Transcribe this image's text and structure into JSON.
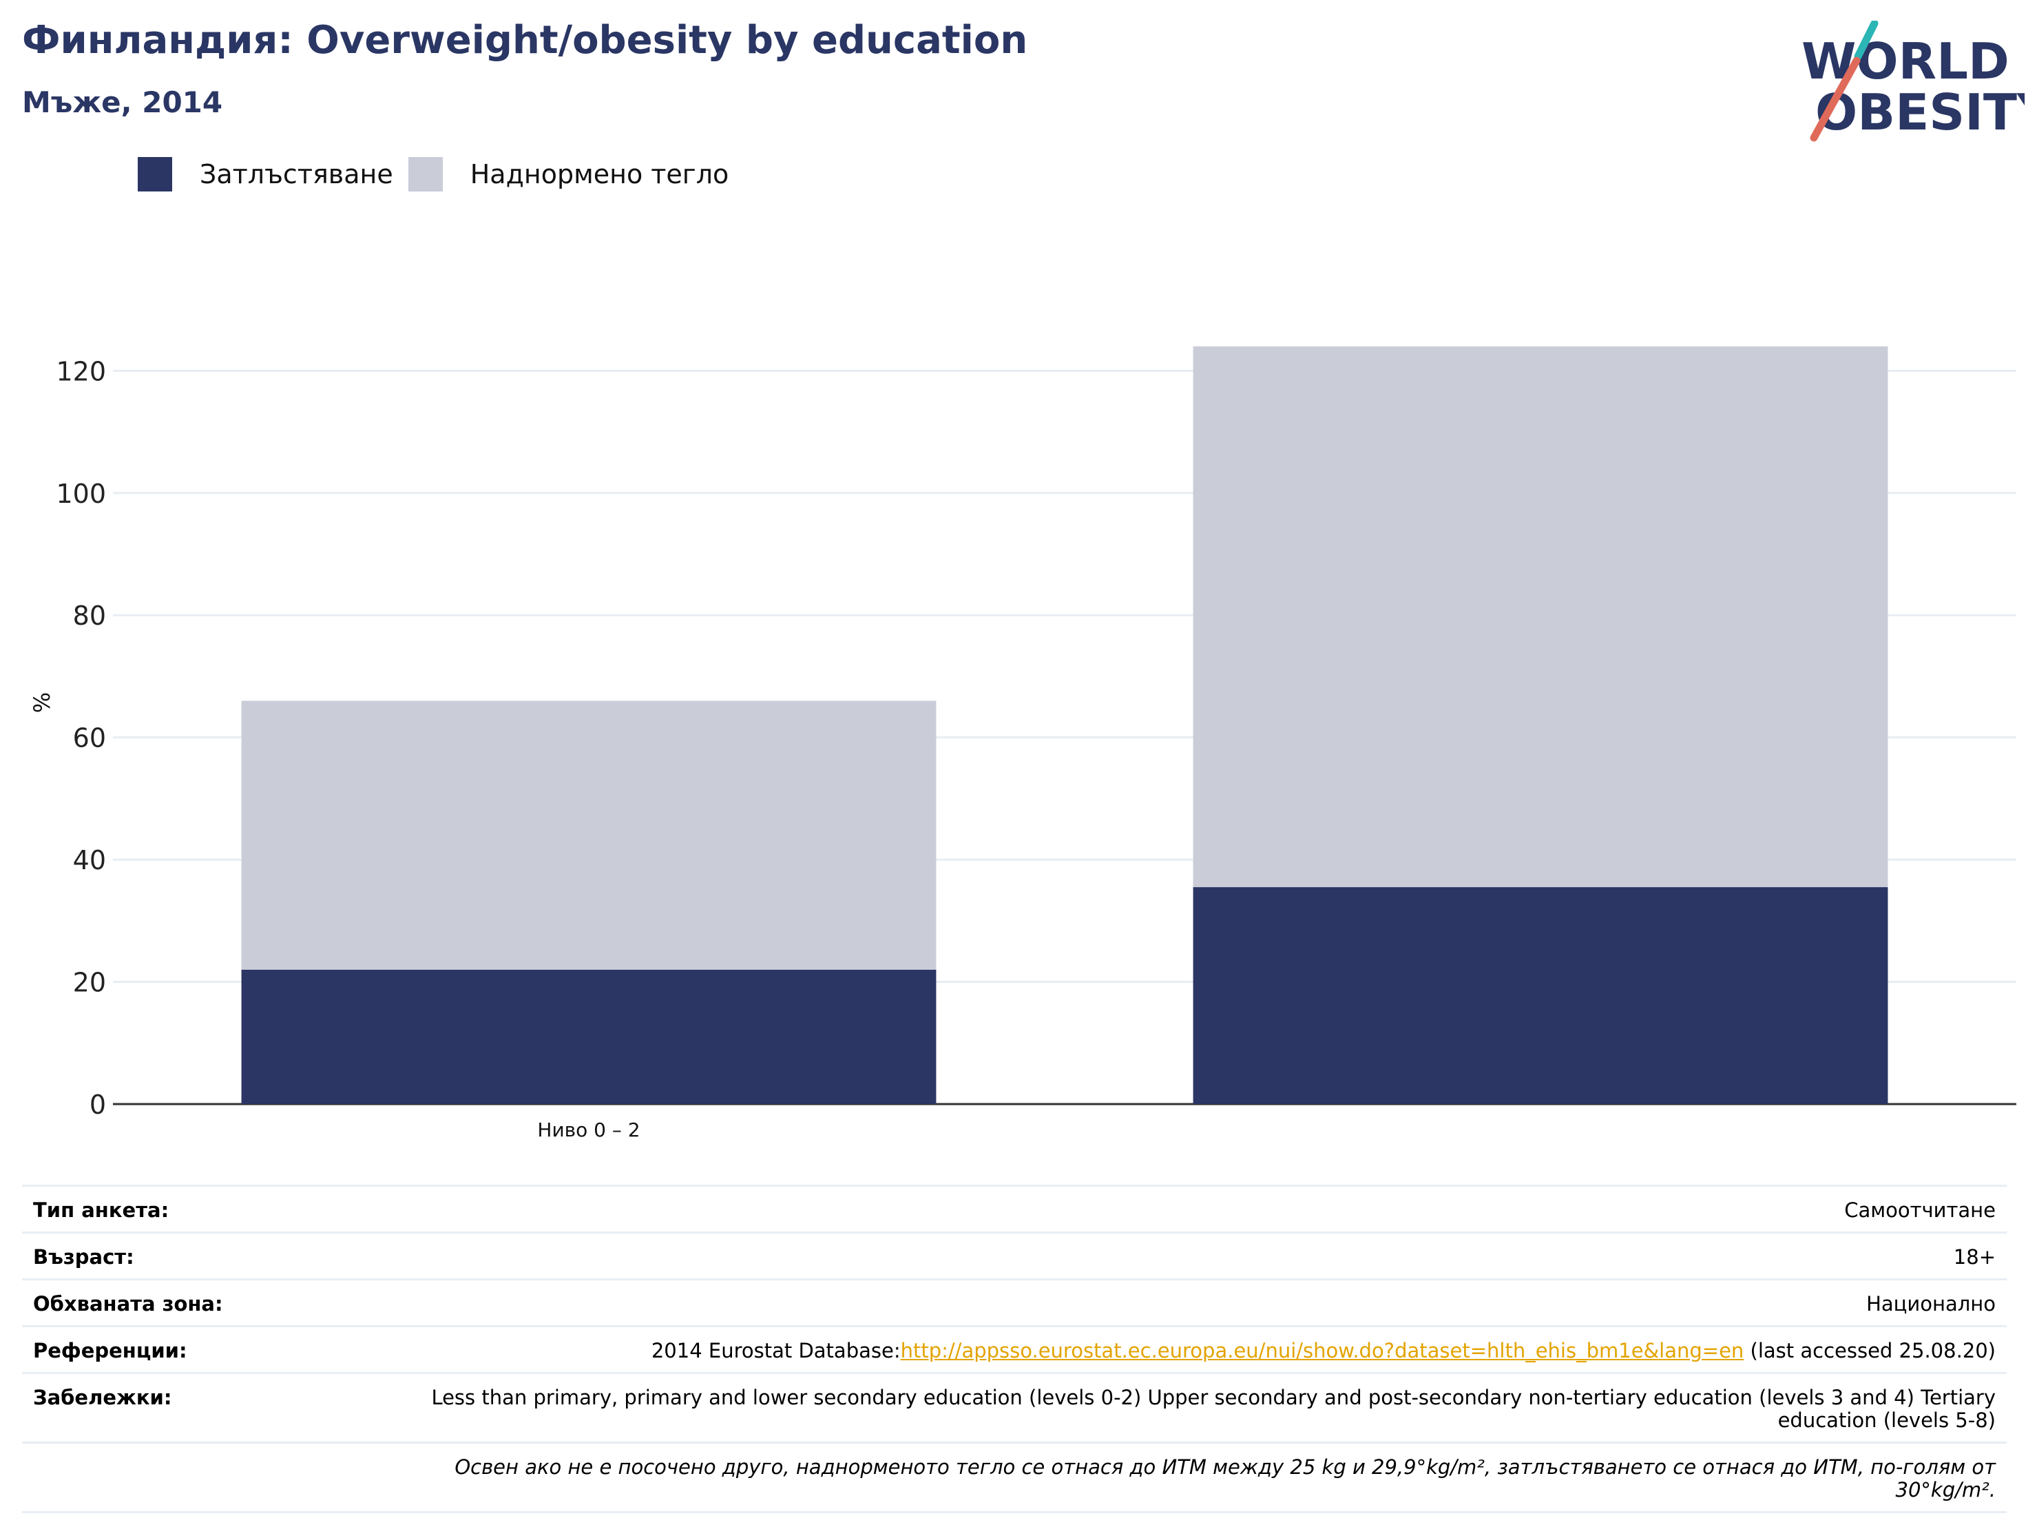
{
  "header": {
    "title": "Финландия: Overweight/obesity by education",
    "subtitle": "Мъже, 2014",
    "logo_line1": "WORLD",
    "logo_line2": "OBESITY"
  },
  "colors": {
    "obesity": "#2b3664",
    "overweight": "#cacdd8",
    "title": "#2a3664",
    "grid": "#e8edf3",
    "axis": "#333333",
    "link": "#e3a300"
  },
  "legend": [
    {
      "label": "Затлъстяване",
      "color": "#2b3664"
    },
    {
      "label": "Наднормено тегло",
      "color": "#cacdd8"
    }
  ],
  "chart_data": {
    "type": "bar",
    "stacked": true,
    "categories": [
      "Ниво 0 – 2",
      ""
    ],
    "series": [
      {
        "name": "Затлъстяване",
        "values": [
          22,
          35.5
        ]
      },
      {
        "name": "Наднормено тегло",
        "values": [
          44,
          88.5
        ]
      }
    ],
    "xlabel": "",
    "ylabel": "%",
    "ylim": [
      0,
      125
    ],
    "yticks": [
      0,
      20,
      40,
      60,
      80,
      100,
      120
    ],
    "grid": true,
    "legend_position": "top-left"
  },
  "info": {
    "survey_type": {
      "label": "Тип анкета:",
      "value": "Самоотчитане"
    },
    "age": {
      "label": "Възраст:",
      "value": "18+"
    },
    "coverage": {
      "label": "Обхваната зона:",
      "value": "Национално"
    },
    "references": {
      "label": "Референции:",
      "prefix": "2014 Eurostat Database:",
      "link": "http://appsso.eurostat.ec.europa.eu/nui/show.do?dataset=hlth_ehis_bm1e&lang=en",
      "suffix": " (last accessed 25.08.20)"
    },
    "notes": {
      "label": "Забележки:",
      "value": "Less than primary, primary and lower secondary education (levels 0-2) Upper secondary and post-secondary non-tertiary education (levels 3 and 4) Tertiary education (levels 5-8)"
    },
    "footnote": "Освен ако не е посочено друго, наднорменото тегло се отнася до ИТМ между 25 kg и 29,9°kg/m², затлъстяването се отнася до ИТМ, по-голям от 30°kg/m²."
  }
}
